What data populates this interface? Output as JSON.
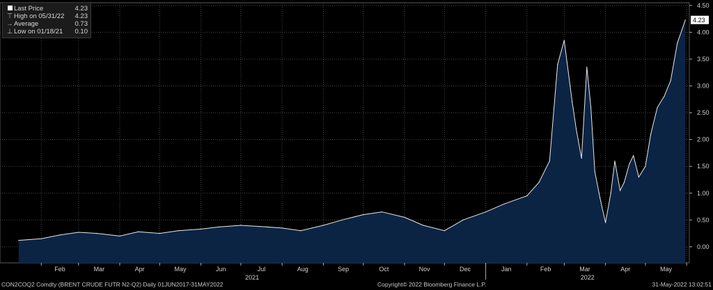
{
  "legend": {
    "items": [
      {
        "marker": "square",
        "label": "Last Price",
        "value": "4.23"
      },
      {
        "marker": "high",
        "label": "High on 05/31/22",
        "value": "4.23"
      },
      {
        "marker": "avg",
        "label": "Average",
        "value": "0.73"
      },
      {
        "marker": "low",
        "label": "Low on 01/18/21",
        "value": "0.10"
      }
    ]
  },
  "footer": {
    "left": "CON2COQ2 Comdty (BRENT CRUDE FUTR  N2-Q2)  Daily 01JUN2017-31MAY2022",
    "center": "Copyright© 2022 Bloomberg Finance L.P.",
    "right": "31-May-2022 13:02:51"
  },
  "colors": {
    "background": "#000000",
    "line": "#e8e8e8",
    "fill": "#0c2444",
    "grid": "#4a4a4a",
    "last_badge": "#ffffff"
  },
  "chart_data": {
    "type": "area",
    "ylim": [
      -0.3,
      4.55
    ],
    "y_ticks": [
      "4.50",
      "4.00",
      "3.50",
      "3.00",
      "2.50",
      "2.00",
      "1.50",
      "1.00",
      "0.50",
      "0.00"
    ],
    "last_price_label": "4.23",
    "x_labels": [
      "Feb",
      "Mar",
      "Apr",
      "May",
      "Jun",
      "Jul",
      "Aug",
      "Sep",
      "Oct",
      "Nov",
      "Dec",
      "Jan",
      "Feb",
      "Mar",
      "Apr",
      "May"
    ],
    "year_labels": [
      "2021",
      "2022"
    ],
    "grid": true,
    "x": [
      "2021-01-15",
      "2021-02-01",
      "2021-02-15",
      "2021-03-01",
      "2021-03-15",
      "2021-04-01",
      "2021-04-15",
      "2021-05-01",
      "2021-05-15",
      "2021-06-01",
      "2021-06-15",
      "2021-07-01",
      "2021-07-15",
      "2021-08-01",
      "2021-08-15",
      "2021-09-01",
      "2021-09-15",
      "2021-10-01",
      "2021-10-15",
      "2021-11-01",
      "2021-11-15",
      "2021-12-01",
      "2021-12-15",
      "2022-01-01",
      "2022-01-15",
      "2022-02-01",
      "2022-02-10",
      "2022-02-18",
      "2022-02-24",
      "2022-03-01",
      "2022-03-07",
      "2022-03-10",
      "2022-03-14",
      "2022-03-18",
      "2022-03-21",
      "2022-03-24",
      "2022-03-28",
      "2022-04-01",
      "2022-04-05",
      "2022-04-08",
      "2022-04-12",
      "2022-04-15",
      "2022-04-19",
      "2022-04-22",
      "2022-04-26",
      "2022-05-01",
      "2022-05-05",
      "2022-05-10",
      "2022-05-15",
      "2022-05-20",
      "2022-05-25",
      "2022-05-31"
    ],
    "values": [
      0.12,
      0.15,
      0.22,
      0.27,
      0.25,
      0.2,
      0.28,
      0.25,
      0.3,
      0.33,
      0.37,
      0.4,
      0.38,
      0.35,
      0.3,
      0.4,
      0.5,
      0.6,
      0.65,
      0.55,
      0.4,
      0.3,
      0.5,
      0.65,
      0.8,
      0.95,
      1.2,
      1.6,
      3.4,
      3.85,
      2.7,
      2.2,
      1.65,
      3.35,
      2.6,
      1.4,
      0.9,
      0.45,
      1.0,
      1.6,
      1.05,
      1.2,
      1.55,
      1.7,
      1.3,
      1.5,
      2.1,
      2.6,
      2.8,
      3.1,
      3.8,
      4.23
    ]
  }
}
